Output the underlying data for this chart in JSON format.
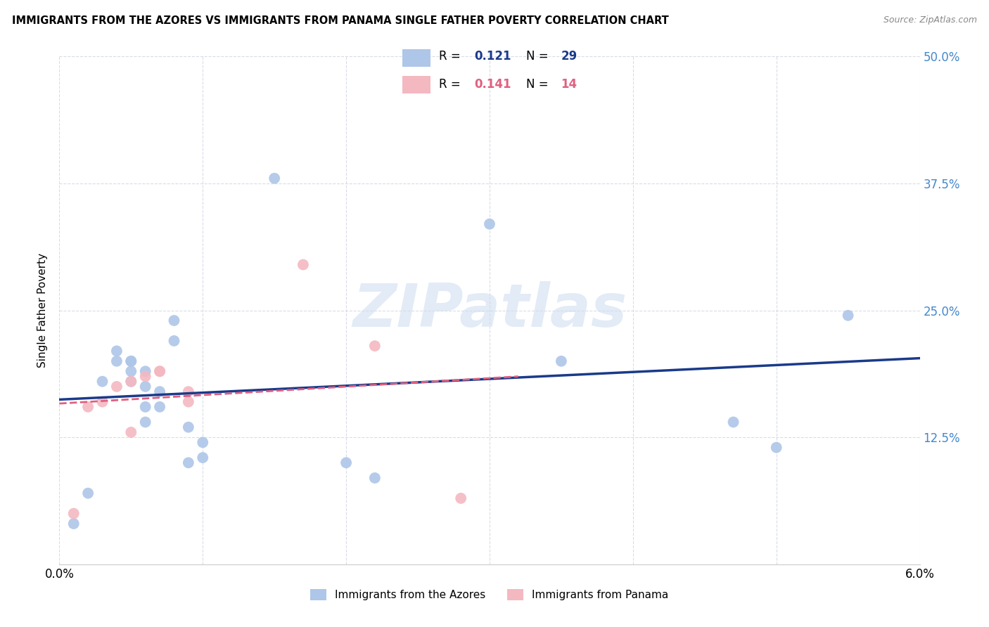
{
  "title": "IMMIGRANTS FROM THE AZORES VS IMMIGRANTS FROM PANAMA SINGLE FATHER POVERTY CORRELATION CHART",
  "source": "Source: ZipAtlas.com",
  "ylabel": "Single Father Poverty",
  "xlim": [
    0.0,
    0.06
  ],
  "ylim": [
    0.0,
    0.5
  ],
  "xticks": [
    0.0,
    0.01,
    0.02,
    0.03,
    0.04,
    0.05,
    0.06
  ],
  "xticklabels": [
    "0.0%",
    "",
    "",
    "",
    "",
    "",
    "6.0%"
  ],
  "yticks": [
    0.0,
    0.125,
    0.25,
    0.375,
    0.5
  ],
  "yticklabels": [
    "",
    "12.5%",
    "25.0%",
    "37.5%",
    "50.0%"
  ],
  "grid_color": "#d8dce8",
  "background_color": "#ffffff",
  "azores_color": "#aec6e8",
  "panama_color": "#f4b8c1",
  "azores_line_color": "#1a3a8a",
  "panama_line_color": "#e06080",
  "ytick_color": "#4488cc",
  "xtick_color": "#000000",
  "legend_label1": "Immigrants from the Azores",
  "legend_label2": "Immigrants from Panama",
  "watermark": "ZIPatlas",
  "azores_x": [
    0.001,
    0.002,
    0.003,
    0.004,
    0.004,
    0.005,
    0.005,
    0.005,
    0.005,
    0.006,
    0.006,
    0.006,
    0.006,
    0.007,
    0.007,
    0.008,
    0.008,
    0.009,
    0.009,
    0.01,
    0.01,
    0.015,
    0.02,
    0.022,
    0.03,
    0.035,
    0.047,
    0.05,
    0.055
  ],
  "azores_y": [
    0.04,
    0.07,
    0.18,
    0.2,
    0.21,
    0.18,
    0.19,
    0.2,
    0.2,
    0.14,
    0.155,
    0.175,
    0.19,
    0.155,
    0.17,
    0.22,
    0.24,
    0.1,
    0.135,
    0.105,
    0.12,
    0.38,
    0.1,
    0.085,
    0.335,
    0.2,
    0.14,
    0.115,
    0.245
  ],
  "panama_x": [
    0.001,
    0.002,
    0.003,
    0.004,
    0.005,
    0.005,
    0.006,
    0.007,
    0.007,
    0.009,
    0.009,
    0.017,
    0.022,
    0.028
  ],
  "panama_y": [
    0.05,
    0.155,
    0.16,
    0.175,
    0.13,
    0.18,
    0.185,
    0.19,
    0.19,
    0.16,
    0.17,
    0.295,
    0.215,
    0.065
  ]
}
